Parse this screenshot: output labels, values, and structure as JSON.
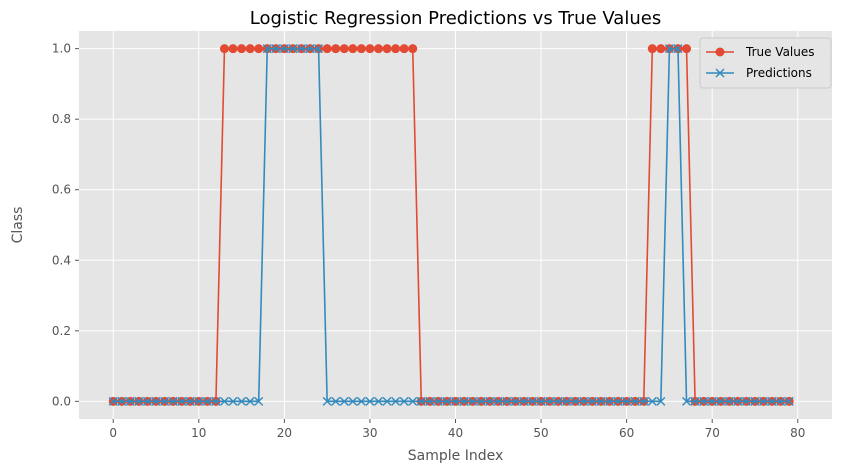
{
  "chart_data": {
    "type": "line",
    "title": "Logistic Regression Predictions vs True Values",
    "xlabel": "Sample Index",
    "ylabel": "Class",
    "xlim": [
      -4,
      84
    ],
    "ylim": [
      -0.05,
      1.05
    ],
    "xticks": [
      0,
      10,
      20,
      30,
      40,
      50,
      60,
      70,
      80
    ],
    "yticks": [
      0.0,
      0.2,
      0.4,
      0.6,
      0.8,
      1.0
    ],
    "xtick_labels": [
      "0",
      "10",
      "20",
      "30",
      "40",
      "50",
      "60",
      "70",
      "80"
    ],
    "ytick_labels": [
      "0.0",
      "0.2",
      "0.4",
      "0.6",
      "0.8",
      "1.0"
    ],
    "grid": true,
    "legend_position": "top-right",
    "series": [
      {
        "name": "True Values",
        "color": "#E24A33",
        "marker": "circle",
        "y": [
          0,
          0,
          0,
          0,
          0,
          0,
          0,
          0,
          0,
          0,
          0,
          0,
          0,
          1,
          1,
          1,
          1,
          1,
          1,
          1,
          1,
          1,
          1,
          1,
          1,
          1,
          1,
          1,
          1,
          1,
          1,
          1,
          1,
          1,
          1,
          1,
          0,
          0,
          0,
          0,
          0,
          0,
          0,
          0,
          0,
          0,
          0,
          0,
          0,
          0,
          0,
          0,
          0,
          0,
          0,
          0,
          0,
          0,
          0,
          0,
          0,
          0,
          0,
          1,
          1,
          1,
          1,
          1,
          0,
          0,
          0,
          0,
          0,
          0,
          0,
          0,
          0,
          0,
          0,
          0
        ]
      },
      {
        "name": "Predictions",
        "color": "#348ABD",
        "marker": "x",
        "y": [
          0,
          0,
          0,
          0,
          0,
          0,
          0,
          0,
          0,
          0,
          0,
          0,
          0,
          0,
          0,
          0,
          0,
          0,
          1,
          1,
          1,
          1,
          1,
          1,
          1,
          0,
          0,
          0,
          0,
          0,
          0,
          0,
          0,
          0,
          0,
          0,
          0,
          0,
          0,
          0,
          0,
          0,
          0,
          0,
          0,
          0,
          0,
          0,
          0,
          0,
          0,
          0,
          0,
          0,
          0,
          0,
          0,
          0,
          0,
          0,
          0,
          0,
          0,
          0,
          0,
          1,
          1,
          0,
          0,
          0,
          0,
          0,
          0,
          0,
          0,
          0,
          0,
          0,
          0,
          0
        ]
      }
    ]
  }
}
